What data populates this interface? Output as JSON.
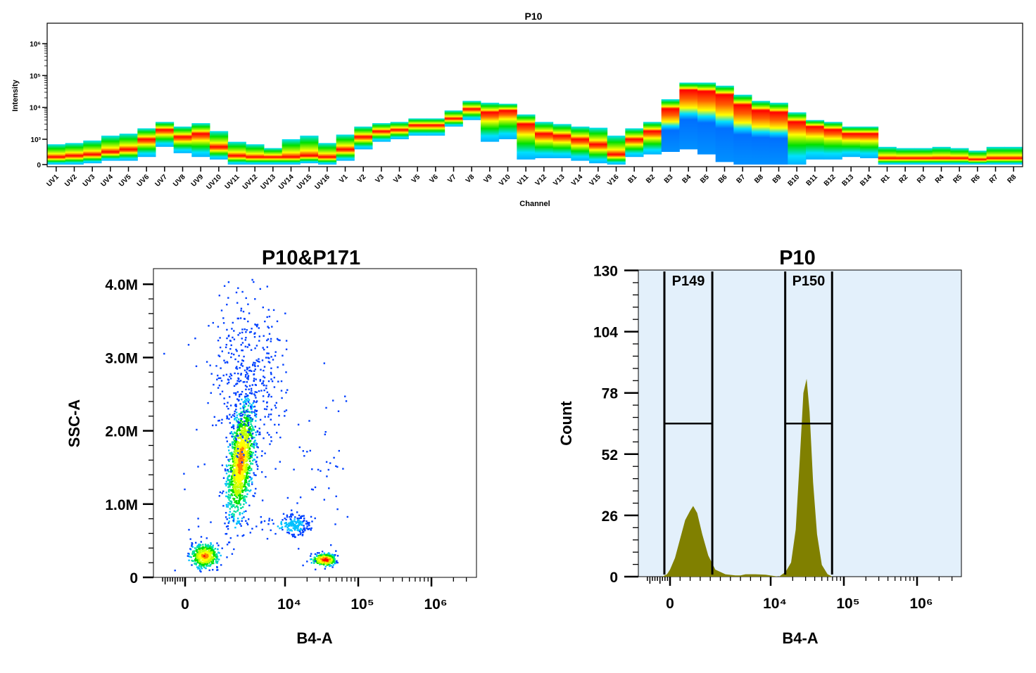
{
  "chart_data": [
    {
      "type": "heatmap",
      "title": "P10",
      "xlabel": "Channel",
      "ylabel": "Intensity",
      "yscale": "biexponential",
      "ytick_labels": [
        "0",
        "10³",
        "10⁴",
        "10⁵",
        "10⁶"
      ],
      "ytick_values": [
        0,
        1000,
        10000,
        100000,
        1000000
      ],
      "colormap": [
        "#0060ff",
        "#00e0ff",
        "#00e000",
        "#ffff00",
        "#ff0000"
      ],
      "channels": [
        {
          "name": "UV1",
          "top": 800,
          "bottom": 0,
          "peak": 300
        },
        {
          "name": "UV2",
          "top": 850,
          "bottom": 0,
          "peak": 350
        },
        {
          "name": "UV3",
          "top": 950,
          "bottom": 50,
          "peak": 400
        },
        {
          "name": "UV4",
          "top": 1300,
          "bottom": 150,
          "peak": 500
        },
        {
          "name": "UV5",
          "top": 1500,
          "bottom": 150,
          "peak": 600
        },
        {
          "name": "UV6",
          "top": 2200,
          "bottom": 300,
          "peak": 1000
        },
        {
          "name": "UV7",
          "top": 3500,
          "bottom": 700,
          "peak": 2000
        },
        {
          "name": "UV8",
          "top": 2500,
          "bottom": 450,
          "peak": 1200
        },
        {
          "name": "UV9",
          "top": 3200,
          "bottom": 300,
          "peak": 1500
        },
        {
          "name": "UV10",
          "top": 1800,
          "bottom": 200,
          "peak": 700
        },
        {
          "name": "UV11",
          "top": 900,
          "bottom": 0,
          "peak": 350
        },
        {
          "name": "UV12",
          "top": 800,
          "bottom": 0,
          "peak": 300
        },
        {
          "name": "UV13",
          "top": 650,
          "bottom": 0,
          "peak": 300
        },
        {
          "name": "UV14",
          "top": 1000,
          "bottom": 0,
          "peak": 300
        },
        {
          "name": "UV15",
          "top": 1300,
          "bottom": 50,
          "peak": 350
        },
        {
          "name": "UV16",
          "top": 850,
          "bottom": 0,
          "peak": 300
        },
        {
          "name": "V1",
          "top": 1400,
          "bottom": 150,
          "peak": 600
        },
        {
          "name": "V2",
          "top": 2500,
          "bottom": 600,
          "peak": 1200
        },
        {
          "name": "V3",
          "top": 3200,
          "bottom": 900,
          "peak": 1800
        },
        {
          "name": "V4",
          "top": 3500,
          "bottom": 1000,
          "peak": 2000
        },
        {
          "name": "V5",
          "top": 4500,
          "bottom": 1300,
          "peak": 2800
        },
        {
          "name": "V6",
          "top": 4500,
          "bottom": 1300,
          "peak": 2800
        },
        {
          "name": "V7",
          "top": 8000,
          "bottom": 2500,
          "peak": 4500
        },
        {
          "name": "V8",
          "top": 16000,
          "bottom": 4000,
          "peak": 9000
        },
        {
          "name": "V9",
          "top": 14000,
          "bottom": 900,
          "peak": 7000
        },
        {
          "name": "V10",
          "top": 13000,
          "bottom": 1000,
          "peak": 8000
        },
        {
          "name": "V11",
          "top": 6000,
          "bottom": 200,
          "peak": 3000
        },
        {
          "name": "V12",
          "top": 3500,
          "bottom": 250,
          "peak": 1500
        },
        {
          "name": "V13",
          "top": 3000,
          "bottom": 250,
          "peak": 1300
        },
        {
          "name": "V14",
          "top": 2500,
          "bottom": 150,
          "peak": 1000
        },
        {
          "name": "V15",
          "top": 2300,
          "bottom": 50,
          "peak": 800
        },
        {
          "name": "V16",
          "top": 1300,
          "bottom": 0,
          "peak": 400
        },
        {
          "name": "B1",
          "top": 2200,
          "bottom": 300,
          "peak": 1000
        },
        {
          "name": "B2",
          "top": 3500,
          "bottom": 400,
          "peak": 1800
        },
        {
          "name": "B3",
          "top": 18000,
          "bottom": 500,
          "peak": 9000
        },
        {
          "name": "B4",
          "top": 60000,
          "bottom": 600,
          "peak": 35000
        },
        {
          "name": "B5",
          "top": 60000,
          "bottom": 400,
          "peak": 32000
        },
        {
          "name": "B6",
          "top": 48000,
          "bottom": 100,
          "peak": 25000
        },
        {
          "name": "B7",
          "top": 25000,
          "bottom": 0,
          "peak": 12000
        },
        {
          "name": "B8",
          "top": 16000,
          "bottom": 0,
          "peak": 8000
        },
        {
          "name": "B9",
          "top": 14000,
          "bottom": 0,
          "peak": 7000
        },
        {
          "name": "B10",
          "top": 7000,
          "bottom": 0,
          "peak": 3500
        },
        {
          "name": "B11",
          "top": 4000,
          "bottom": 200,
          "peak": 2500
        },
        {
          "name": "B12",
          "top": 3500,
          "bottom": 200,
          "peak": 2000
        },
        {
          "name": "B13",
          "top": 2500,
          "bottom": 300,
          "peak": 1500
        },
        {
          "name": "B14",
          "top": 2500,
          "bottom": 250,
          "peak": 1500
        },
        {
          "name": "R1",
          "top": 700,
          "bottom": 0,
          "peak": 250
        },
        {
          "name": "R2",
          "top": 650,
          "bottom": 0,
          "peak": 250
        },
        {
          "name": "R3",
          "top": 650,
          "bottom": 0,
          "peak": 250
        },
        {
          "name": "R4",
          "top": 700,
          "bottom": 0,
          "peak": 250
        },
        {
          "name": "R5",
          "top": 650,
          "bottom": 0,
          "peak": 250
        },
        {
          "name": "R6",
          "top": 550,
          "bottom": 0,
          "peak": 200
        },
        {
          "name": "R7",
          "top": 700,
          "bottom": 0,
          "peak": 250
        },
        {
          "name": "R8",
          "top": 700,
          "bottom": 0,
          "peak": 250
        }
      ]
    },
    {
      "type": "scatter",
      "title": "P10&P171",
      "xlabel": "B4-A",
      "ylabel": "SSC-A",
      "xscale": "biexponential",
      "xtick_labels": [
        "0",
        "10⁴",
        "10⁵",
        "10⁶"
      ],
      "xtick_values": [
        0,
        10000,
        100000,
        1000000
      ],
      "ytick_labels": [
        "0",
        "1.0M",
        "2.0M",
        "3.0M",
        "4.0M"
      ],
      "ytick_values": [
        0,
        1000000,
        2000000,
        3000000,
        4000000
      ],
      "ylim": [
        0,
        4200000
      ],
      "density_colormap": [
        "#0040ff",
        "#00e0ff",
        "#00e000",
        "#ffff00",
        "#ff0000"
      ],
      "populations": [
        {
          "x_center": 1900,
          "y_center": 300000,
          "x_sd": 700,
          "y_sd": 80000,
          "count": 500
        },
        {
          "x_center": 5500,
          "y_center": 1600000,
          "x_sd": 600,
          "y_sd": 380000,
          "count": 1300,
          "slope": 0.00025
        },
        {
          "x_center": 6000,
          "y_center": 2700000,
          "x_sd": 1800,
          "y_sd": 600000,
          "count": 450
        },
        {
          "x_center": 13000,
          "y_center": 720000,
          "x_sd": 4000,
          "y_sd": 80000,
          "count": 200
        },
        {
          "x_center": 35000,
          "y_center": 250000,
          "x_sd": 6000,
          "y_sd": 40000,
          "count": 350
        },
        {
          "x_center": 20000,
          "y_center": 1500000,
          "x_sd": 20000,
          "y_sd": 800000,
          "count": 80
        }
      ]
    },
    {
      "type": "area",
      "title": "P10",
      "xlabel": "B4-A",
      "ylabel": "Count",
      "xscale": "biexponential",
      "xtick_labels": [
        "0",
        "10⁴",
        "10⁵",
        "10⁶"
      ],
      "xtick_values": [
        0,
        10000,
        100000,
        1000000
      ],
      "ytick_labels": [
        "0",
        "26",
        "52",
        "78",
        "104",
        "130"
      ],
      "ytick_values": [
        0,
        26,
        52,
        78,
        104,
        130
      ],
      "ylim": [
        0,
        130
      ],
      "fill_color": "#808000",
      "background_color": "#e3f0fb",
      "points": [
        [
          -800,
          0
        ],
        [
          -300,
          1
        ],
        [
          0,
          3
        ],
        [
          500,
          8
        ],
        [
          1000,
          16
        ],
        [
          1500,
          24
        ],
        [
          2000,
          28
        ],
        [
          2300,
          30
        ],
        [
          2700,
          27
        ],
        [
          3200,
          18
        ],
        [
          3800,
          9
        ],
        [
          4500,
          3
        ],
        [
          5500,
          1
        ],
        [
          6500,
          0.5
        ],
        [
          7000,
          0.5
        ],
        [
          7500,
          1
        ],
        [
          8500,
          1
        ],
        [
          9500,
          0.8
        ],
        [
          11000,
          0.3
        ],
        [
          13000,
          0
        ],
        [
          16000,
          2
        ],
        [
          19000,
          6
        ],
        [
          22000,
          20
        ],
        [
          25000,
          50
        ],
        [
          28000,
          78
        ],
        [
          31000,
          84
        ],
        [
          34000,
          70
        ],
        [
          38000,
          40
        ],
        [
          43000,
          18
        ],
        [
          50000,
          5
        ],
        [
          60000,
          1
        ],
        [
          70000,
          0
        ]
      ],
      "gates": [
        {
          "name": "P149",
          "min": -560,
          "max": 4200,
          "level": 65
        },
        {
          "name": "P150",
          "min": 15800,
          "max": 69000,
          "level": 65
        }
      ]
    }
  ]
}
